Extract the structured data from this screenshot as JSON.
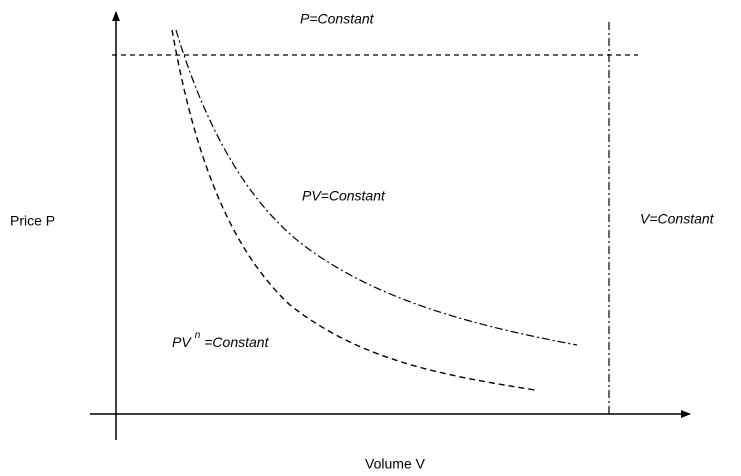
{
  "diagram": {
    "y_axis_label": "Price P",
    "x_axis_label": "Volume V",
    "curves": {
      "isobar": "P=Constant",
      "isochore": "V=Constant",
      "isotherm": "PV=Constant",
      "polytropic": {
        "base": "PV",
        "exponent": "n",
        "rest": "=Constant"
      }
    }
  }
}
